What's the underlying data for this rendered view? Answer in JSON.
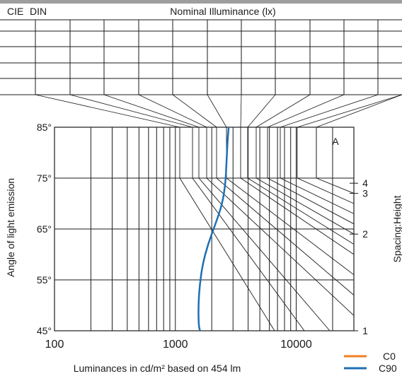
{
  "header": {
    "col1": "CIE",
    "col2": "DIN",
    "title": "Nominal Illuminance (lx)"
  },
  "chart_data": {
    "type": "line",
    "xlabel": "Luminances in cd/m² based on 454 lm",
    "ylabel": "Angle of light emission",
    "right_label": "Spacing:Height",
    "x_scale": "log",
    "xlim": [
      100,
      30000
    ],
    "ylim": [
      45,
      85
    ],
    "x_ticks": [
      {
        "value": 100,
        "label": "100"
      },
      {
        "value": 1000,
        "label": "1000"
      },
      {
        "value": 10000,
        "label": "10000"
      }
    ],
    "y_ticks": [
      {
        "value": 85,
        "label": "85°"
      },
      {
        "value": 75,
        "label": "75°"
      },
      {
        "value": 65,
        "label": "65°"
      },
      {
        "value": 55,
        "label": "55°"
      },
      {
        "value": 45,
        "label": "45°"
      }
    ],
    "spacing_ticks": [
      {
        "label": "4",
        "angle": 74
      },
      {
        "label": "3",
        "angle": 72
      },
      {
        "label": "2",
        "angle": 64
      },
      {
        "label": "1",
        "angle": 45
      }
    ],
    "box_label": "A",
    "legend_position": "bottom-right",
    "series": [
      {
        "name": "C0",
        "color": "#f07f23",
        "points": []
      },
      {
        "name": "C90",
        "color": "#1f6fb4",
        "points": [
          {
            "x": 2760,
            "y": 85
          },
          {
            "x": 2700,
            "y": 82
          },
          {
            "x": 2650,
            "y": 78
          },
          {
            "x": 2600,
            "y": 74
          },
          {
            "x": 2450,
            "y": 70
          },
          {
            "x": 2150,
            "y": 66
          },
          {
            "x": 1860,
            "y": 62
          },
          {
            "x": 1680,
            "y": 58
          },
          {
            "x": 1590,
            "y": 54
          },
          {
            "x": 1550,
            "y": 50
          },
          {
            "x": 1560,
            "y": 46
          },
          {
            "x": 1600,
            "y": 45
          }
        ]
      }
    ]
  }
}
